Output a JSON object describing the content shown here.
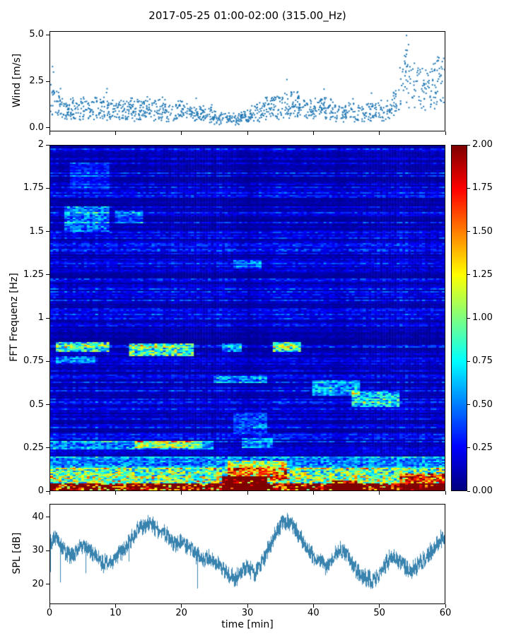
{
  "title": "2017-05-25 01:00-02:00 (315.00_Hz)",
  "colors": {
    "scatter_marker": "#1f77b4",
    "spl_line": "#2e7cab",
    "axis": "#000000",
    "figure_background": "#ffffff"
  },
  "panels": {
    "wind": {
      "ylabel": "Wind [m/s]",
      "ylim": [
        -0.2,
        5.2
      ],
      "yticks": {
        "labels": [
          "0.0",
          "2.5",
          "5.0"
        ],
        "values": [
          0,
          2.5,
          5
        ]
      }
    },
    "spec": {
      "ylabel": "FFT Frequenz [Hz]",
      "ylim": [
        0,
        2
      ],
      "yticks": {
        "labels": [
          "0",
          "0.25",
          "0.5",
          "0.75",
          "1",
          "1.25",
          "1.5",
          "1.75",
          "2"
        ],
        "values": [
          0,
          0.25,
          0.5,
          0.75,
          1,
          1.25,
          1.5,
          1.75,
          2
        ]
      }
    },
    "colorbar": {
      "colormap": "jet",
      "vmin": 0,
      "vmax": 2,
      "ticks": {
        "labels": [
          "0.00",
          "0.25",
          "0.50",
          "0.75",
          "1.00",
          "1.25",
          "1.50",
          "1.75",
          "2.00"
        ],
        "values": [
          0,
          0.25,
          0.5,
          0.75,
          1,
          1.25,
          1.5,
          1.75,
          2
        ]
      }
    },
    "spl": {
      "ylabel": "SPL [dB]",
      "ylim": [
        14,
        44
      ],
      "yticks": {
        "labels": [
          "20",
          "30",
          "40"
        ],
        "values": [
          20,
          30,
          40
        ]
      },
      "xlabel": "time [min]",
      "xlim": [
        0,
        60
      ],
      "xticks": {
        "labels": [
          "0",
          "10",
          "20",
          "30",
          "40",
          "50",
          "60"
        ],
        "values": [
          0,
          10,
          20,
          30,
          40,
          50,
          60
        ]
      }
    }
  },
  "chart_data": [
    {
      "type": "scatter",
      "name": "wind-speed",
      "ylabel": "Wind [m/s]",
      "xlim": [
        0,
        60
      ],
      "ylim": [
        -0.2,
        5.2
      ],
      "x_minutes": [
        0,
        1,
        2,
        3,
        4,
        5,
        6,
        7,
        8,
        9,
        10,
        11,
        12,
        13,
        14,
        15,
        16,
        17,
        18,
        19,
        20,
        21,
        22,
        23,
        24,
        25,
        26,
        27,
        28,
        29,
        30,
        31,
        32,
        33,
        34,
        35,
        36,
        37,
        38,
        39,
        40,
        41,
        42,
        43,
        44,
        45,
        46,
        47,
        48,
        49,
        50,
        51,
        52,
        53,
        54,
        55,
        56,
        57,
        58,
        59,
        60
      ],
      "mean_values": [
        1.6,
        1.2,
        0.9,
        0.85,
        0.9,
        1.0,
        0.9,
        1.0,
        1.1,
        0.9,
        0.85,
        0.9,
        1.0,
        0.85,
        0.9,
        1.0,
        0.95,
        0.85,
        0.75,
        0.8,
        0.9,
        0.8,
        0.7,
        0.65,
        0.7,
        0.55,
        0.45,
        0.5,
        0.45,
        0.5,
        0.6,
        0.7,
        0.8,
        1.0,
        1.1,
        1.0,
        1.2,
        1.3,
        1.1,
        1.0,
        0.9,
        1.0,
        1.15,
        0.85,
        0.7,
        0.8,
        0.95,
        0.75,
        0.8,
        0.9,
        0.7,
        0.8,
        1.1,
        1.8,
        2.9,
        2.4,
        2.1,
        1.9,
        2.2,
        2.5,
        2.4
      ],
      "extra_points": [
        [
          54.2,
          5.0
        ],
        [
          54.5,
          4.5
        ],
        [
          54.1,
          4.2
        ],
        [
          0.35,
          3.3
        ],
        [
          0.5,
          3.0
        ],
        [
          59.2,
          3.2
        ],
        [
          57.8,
          3.0
        ]
      ],
      "n_points": 1250
    },
    {
      "type": "heatmap",
      "name": "spectrogram",
      "ylabel": "FFT Frequenz [Hz]",
      "xlim": [
        0,
        60
      ],
      "ylim": [
        0,
        2
      ],
      "vmin": 0,
      "vmax": 2,
      "colormap": "jet",
      "background_level": 0.2,
      "dark_columns": [
        {
          "t": 30,
          "width": 1.3,
          "depth": 0.3
        },
        {
          "t": 44,
          "width": 0.9,
          "depth": 0.22
        }
      ],
      "bands": [
        {
          "t0": 0,
          "t1": 60,
          "f0": 0.0,
          "f1": 0.045,
          "amp": 2.6
        },
        {
          "t0": 0,
          "t1": 60,
          "f0": 0.045,
          "f1": 0.13,
          "amp": 1.1
        },
        {
          "t0": 0,
          "t1": 60,
          "f0": 0.13,
          "f1": 0.2,
          "amp": 0.5
        },
        {
          "t0": 26,
          "t1": 33,
          "f0": 0.0,
          "f1": 0.08,
          "amp": 1.6
        },
        {
          "t0": 43,
          "t1": 47,
          "f0": 0.0,
          "f1": 0.06,
          "amp": 1.1
        },
        {
          "t0": 53,
          "t1": 60,
          "f0": 0.0,
          "f1": 0.1,
          "amp": 0.9
        },
        {
          "t0": 27,
          "t1": 36,
          "f0": 0.06,
          "f1": 0.17,
          "amp": 0.8
        },
        {
          "t0": 0,
          "t1": 25,
          "f0": 0.24,
          "f1": 0.285,
          "amp": 0.5
        },
        {
          "t0": 13,
          "t1": 23,
          "f0": 0.25,
          "f1": 0.29,
          "amp": 0.7
        },
        {
          "t0": 29,
          "t1": 34,
          "f0": 0.25,
          "f1": 0.3,
          "amp": 0.55
        },
        {
          "t0": 1,
          "t1": 9,
          "f0": 0.8,
          "f1": 0.86,
          "amp": 0.95
        },
        {
          "t0": 1,
          "t1": 7,
          "f0": 0.74,
          "f1": 0.78,
          "amp": 0.45
        },
        {
          "t0": 12,
          "t1": 22,
          "f0": 0.78,
          "f1": 0.85,
          "amp": 1.0
        },
        {
          "t0": 26,
          "t1": 29,
          "f0": 0.8,
          "f1": 0.85,
          "amp": 0.55
        },
        {
          "t0": 34,
          "t1": 38,
          "f0": 0.8,
          "f1": 0.86,
          "amp": 0.95
        },
        {
          "t0": 25,
          "t1": 33,
          "f0": 0.62,
          "f1": 0.66,
          "amp": 0.5
        },
        {
          "t0": 40,
          "t1": 47,
          "f0": 0.55,
          "f1": 0.64,
          "amp": 0.55
        },
        {
          "t0": 46,
          "t1": 53,
          "f0": 0.48,
          "f1": 0.57,
          "amp": 0.7
        },
        {
          "t0": 2,
          "t1": 9,
          "f0": 1.5,
          "f1": 1.65,
          "amp": 0.5
        },
        {
          "t0": 10,
          "t1": 14,
          "f0": 1.55,
          "f1": 1.62,
          "amp": 0.35
        },
        {
          "t0": 28,
          "t1": 32,
          "f0": 1.29,
          "f1": 1.34,
          "amp": 0.4
        },
        {
          "t0": 28,
          "t1": 33,
          "f0": 0.33,
          "f1": 0.45,
          "amp": 0.35
        },
        {
          "t0": 3,
          "t1": 9,
          "f0": 1.75,
          "f1": 1.9,
          "amp": 0.25
        }
      ]
    },
    {
      "type": "line",
      "name": "spl",
      "ylabel": "SPL [dB]",
      "xlabel": "time [min]",
      "xlim": [
        0,
        60
      ],
      "ylim": [
        14,
        44
      ],
      "noise_db": 2.2,
      "x_minutes": [
        0,
        1,
        2,
        3,
        4,
        5,
        6,
        7,
        8,
        9,
        10,
        11,
        12,
        13,
        14,
        15,
        16,
        17,
        18,
        19,
        20,
        21,
        22,
        23,
        24,
        25,
        26,
        27,
        28,
        29,
        30,
        31,
        32,
        33,
        34,
        35,
        36,
        37,
        38,
        39,
        40,
        41,
        42,
        43,
        44,
        45,
        46,
        47,
        48,
        49,
        50,
        51,
        52,
        53,
        54,
        55,
        56,
        57,
        58,
        59,
        60
      ],
      "mean_values": [
        33,
        34,
        30,
        28,
        30,
        32,
        30,
        28,
        26,
        27,
        28,
        30,
        33,
        36,
        37,
        38,
        37,
        36,
        34,
        32,
        33,
        31,
        29,
        28,
        28,
        27,
        25,
        23,
        21,
        24,
        25,
        23,
        26,
        30,
        34,
        38,
        39,
        37,
        34,
        31,
        28,
        27,
        25,
        28,
        31,
        29,
        26,
        23,
        22,
        21,
        22,
        26,
        29,
        27,
        25,
        24,
        26,
        28,
        30,
        33,
        34
      ]
    }
  ]
}
